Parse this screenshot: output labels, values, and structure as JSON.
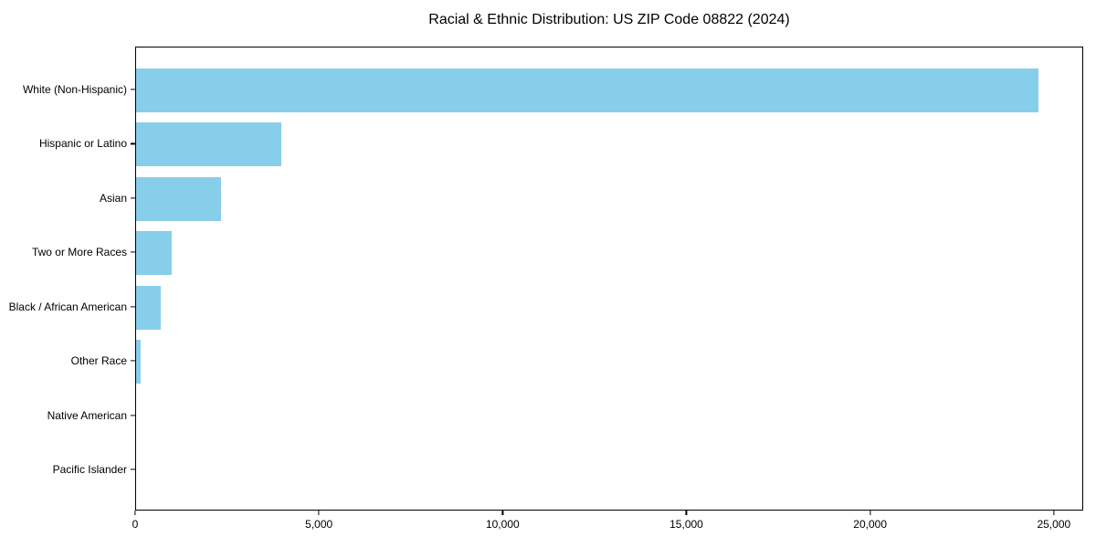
{
  "chart_data": {
    "type": "bar",
    "orientation": "horizontal",
    "title": "Racial & Ethnic Distribution: US ZIP Code 08822 (2024)",
    "categories": [
      "White (Non-Hispanic)",
      "Hispanic or Latino",
      "Asian",
      "Two or More Races",
      "Black / African American",
      "Other Race",
      "Native American",
      "Pacific Islander"
    ],
    "values": [
      24550,
      3950,
      2310,
      970,
      670,
      120,
      0,
      0
    ],
    "xlabel": "",
    "ylabel": "",
    "xlim": [
      0,
      25800
    ],
    "x_tick_values": [
      0,
      5000,
      10000,
      15000,
      20000,
      25000
    ],
    "x_tick_labels": [
      "0",
      "5,000",
      "10,000",
      "15,000",
      "20,000",
      "25,000"
    ],
    "grid": false,
    "legend": "none",
    "bar_color": "#87CEEB",
    "text_color": "#000000",
    "axis_color": "#000000",
    "background_color": "#ffffff"
  }
}
